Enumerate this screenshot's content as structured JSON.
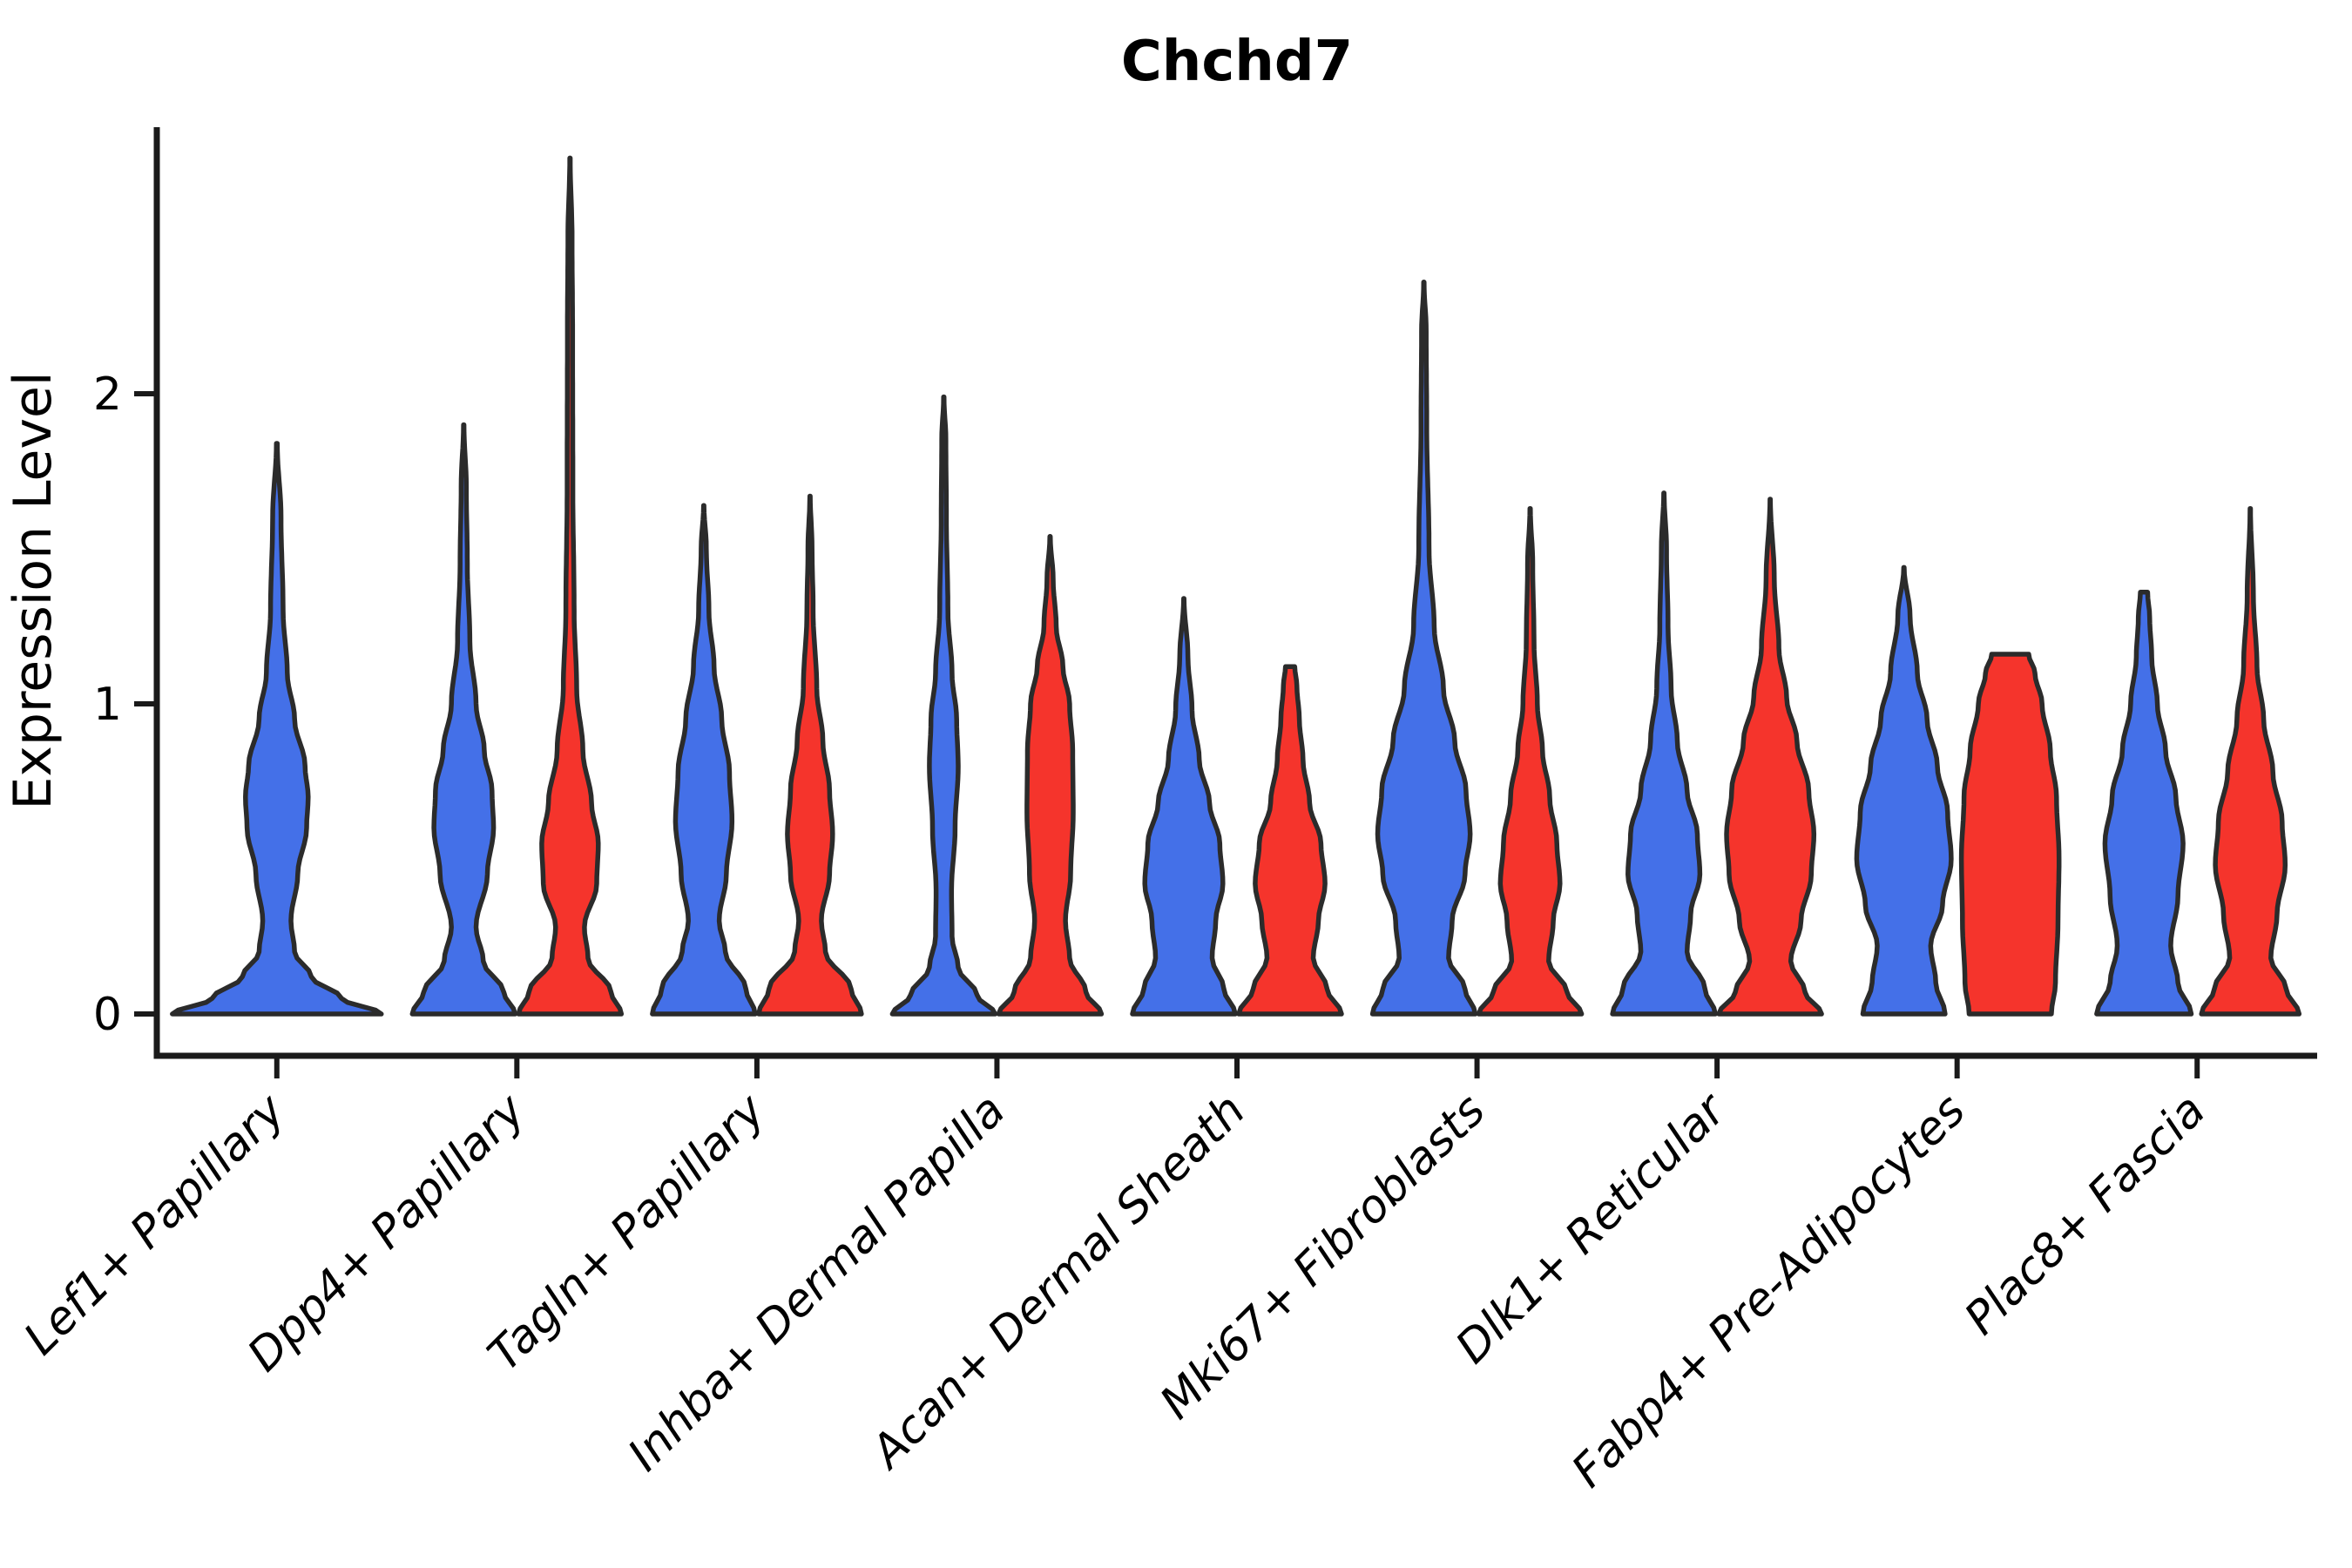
{
  "chart": {
    "title": "Chchd7",
    "ylabel": "Expression Level"
  },
  "chart_data": {
    "type": "violin",
    "title": "Chchd7",
    "xlabel": "",
    "ylabel": "Expression Level",
    "ylim": [
      0,
      2.87
    ],
    "yticks": [
      0,
      1,
      2
    ],
    "grid": false,
    "legend": "none",
    "categories": [
      "Lef1+ Papillary",
      "Dpp4+ Papillary",
      "Tagln+ Papillary",
      "Inhba+ Dermal Papilla",
      "Acan+ Dermal Sheath",
      "Mki67+ Fibroblasts",
      "Dlk1+ Reticular",
      "Fabp4+ Pre-Adipocytes",
      "Plac8+ Fascia"
    ],
    "colors": {
      "blue": "#4470E8",
      "red": "#F5342C",
      "outline": "#2B2B2B",
      "axis": "#1A1A1A"
    },
    "violins": [
      {
        "cat": 0,
        "color": "blue",
        "side": "center",
        "max_expression": 1.84,
        "profile": [
          [
            0,
            1.0
          ],
          [
            0.05,
            0.62
          ],
          [
            0.12,
            0.33
          ],
          [
            0.2,
            0.17
          ],
          [
            0.3,
            0.135
          ],
          [
            0.45,
            0.2
          ],
          [
            0.6,
            0.285
          ],
          [
            0.7,
            0.3
          ],
          [
            0.8,
            0.27
          ],
          [
            0.95,
            0.17
          ],
          [
            1.1,
            0.1
          ],
          [
            1.3,
            0.06
          ],
          [
            1.6,
            0.04
          ],
          [
            1.84,
            0.004
          ]
        ]
      },
      {
        "cat": 1,
        "color": "blue",
        "side": "left",
        "max_expression": 1.9,
        "profile": [
          [
            0,
            1.0
          ],
          [
            0.07,
            0.78
          ],
          [
            0.17,
            0.38
          ],
          [
            0.28,
            0.24
          ],
          [
            0.45,
            0.46
          ],
          [
            0.6,
            0.58
          ],
          [
            0.72,
            0.55
          ],
          [
            0.85,
            0.4
          ],
          [
            1.0,
            0.24
          ],
          [
            1.2,
            0.12
          ],
          [
            1.45,
            0.07
          ],
          [
            1.7,
            0.05
          ],
          [
            1.9,
            0.004
          ]
        ]
      },
      {
        "cat": 1,
        "color": "red",
        "side": "right",
        "max_expression": 2.76,
        "profile": [
          [
            0,
            1.0
          ],
          [
            0.07,
            0.8
          ],
          [
            0.18,
            0.35
          ],
          [
            0.28,
            0.28
          ],
          [
            0.42,
            0.52
          ],
          [
            0.55,
            0.55
          ],
          [
            0.68,
            0.42
          ],
          [
            0.85,
            0.25
          ],
          [
            1.05,
            0.13
          ],
          [
            1.3,
            0.08
          ],
          [
            1.7,
            0.055
          ],
          [
            2.2,
            0.05
          ],
          [
            2.5,
            0.04
          ],
          [
            2.76,
            0.004
          ]
        ]
      },
      {
        "cat": 2,
        "color": "blue",
        "side": "left",
        "max_expression": 1.64,
        "profile": [
          [
            0,
            1.0
          ],
          [
            0.08,
            0.82
          ],
          [
            0.2,
            0.42
          ],
          [
            0.3,
            0.3
          ],
          [
            0.45,
            0.44
          ],
          [
            0.62,
            0.55
          ],
          [
            0.78,
            0.5
          ],
          [
            0.95,
            0.35
          ],
          [
            1.12,
            0.2
          ],
          [
            1.3,
            0.1
          ],
          [
            1.5,
            0.05
          ],
          [
            1.64,
            0.004
          ]
        ]
      },
      {
        "cat": 2,
        "color": "red",
        "side": "right",
        "max_expression": 1.67,
        "profile": [
          [
            0,
            1.0
          ],
          [
            0.08,
            0.8
          ],
          [
            0.2,
            0.3
          ],
          [
            0.3,
            0.22
          ],
          [
            0.45,
            0.38
          ],
          [
            0.58,
            0.44
          ],
          [
            0.72,
            0.38
          ],
          [
            0.88,
            0.25
          ],
          [
            1.05,
            0.13
          ],
          [
            1.3,
            0.06
          ],
          [
            1.5,
            0.04
          ],
          [
            1.67,
            0.004
          ]
        ]
      },
      {
        "cat": 3,
        "color": "blue",
        "side": "left",
        "max_expression": 1.99,
        "profile": [
          [
            0,
            1.0
          ],
          [
            0.06,
            0.65
          ],
          [
            0.15,
            0.28
          ],
          [
            0.25,
            0.16
          ],
          [
            0.4,
            0.15
          ],
          [
            0.6,
            0.22
          ],
          [
            0.8,
            0.28
          ],
          [
            0.95,
            0.25
          ],
          [
            1.1,
            0.16
          ],
          [
            1.3,
            0.08
          ],
          [
            1.6,
            0.05
          ],
          [
            1.85,
            0.04
          ],
          [
            1.99,
            0.004
          ]
        ]
      },
      {
        "cat": 3,
        "color": "red",
        "side": "right",
        "max_expression": 1.54,
        "profile": [
          [
            0,
            1.0
          ],
          [
            0.07,
            0.7
          ],
          [
            0.18,
            0.38
          ],
          [
            0.3,
            0.3
          ],
          [
            0.45,
            0.4
          ],
          [
            0.65,
            0.45
          ],
          [
            0.85,
            0.44
          ],
          [
            1.0,
            0.38
          ],
          [
            1.12,
            0.25
          ],
          [
            1.25,
            0.12
          ],
          [
            1.4,
            0.06
          ],
          [
            1.54,
            0.004
          ]
        ]
      },
      {
        "cat": 4,
        "color": "blue",
        "side": "left",
        "max_expression": 1.34,
        "profile": [
          [
            0,
            1.0
          ],
          [
            0.08,
            0.78
          ],
          [
            0.18,
            0.55
          ],
          [
            0.3,
            0.62
          ],
          [
            0.42,
            0.76
          ],
          [
            0.55,
            0.7
          ],
          [
            0.68,
            0.5
          ],
          [
            0.82,
            0.3
          ],
          [
            0.98,
            0.16
          ],
          [
            1.15,
            0.08
          ],
          [
            1.34,
            0.004
          ]
        ]
      },
      {
        "cat": 4,
        "color": "red",
        "side": "right",
        "max_expression": 1.12,
        "profile": [
          [
            0,
            1.0
          ],
          [
            0.08,
            0.72
          ],
          [
            0.18,
            0.45
          ],
          [
            0.3,
            0.55
          ],
          [
            0.42,
            0.68
          ],
          [
            0.55,
            0.6
          ],
          [
            0.68,
            0.38
          ],
          [
            0.82,
            0.25
          ],
          [
            0.95,
            0.18
          ],
          [
            1.06,
            0.13
          ],
          [
            1.12,
            0.09
          ]
        ]
      },
      {
        "cat": 5,
        "color": "blue",
        "side": "left",
        "max_expression": 2.36,
        "profile": [
          [
            0,
            1.0
          ],
          [
            0.08,
            0.8
          ],
          [
            0.18,
            0.48
          ],
          [
            0.3,
            0.55
          ],
          [
            0.45,
            0.8
          ],
          [
            0.58,
            0.9
          ],
          [
            0.72,
            0.82
          ],
          [
            0.88,
            0.6
          ],
          [
            1.05,
            0.38
          ],
          [
            1.25,
            0.2
          ],
          [
            1.5,
            0.1
          ],
          [
            1.9,
            0.055
          ],
          [
            2.2,
            0.045
          ],
          [
            2.36,
            0.004
          ]
        ]
      },
      {
        "cat": 5,
        "color": "red",
        "side": "right",
        "max_expression": 1.63,
        "profile": [
          [
            0,
            1.0
          ],
          [
            0.07,
            0.72
          ],
          [
            0.17,
            0.36
          ],
          [
            0.3,
            0.45
          ],
          [
            0.42,
            0.58
          ],
          [
            0.55,
            0.52
          ],
          [
            0.7,
            0.38
          ],
          [
            0.85,
            0.24
          ],
          [
            1.0,
            0.14
          ],
          [
            1.2,
            0.075
          ],
          [
            1.45,
            0.05
          ],
          [
            1.63,
            0.004
          ]
        ]
      },
      {
        "cat": 6,
        "color": "blue",
        "side": "left",
        "max_expression": 1.68,
        "profile": [
          [
            0,
            1.0
          ],
          [
            0.08,
            0.8
          ],
          [
            0.2,
            0.45
          ],
          [
            0.32,
            0.52
          ],
          [
            0.45,
            0.7
          ],
          [
            0.58,
            0.65
          ],
          [
            0.72,
            0.45
          ],
          [
            0.88,
            0.26
          ],
          [
            1.05,
            0.14
          ],
          [
            1.25,
            0.08
          ],
          [
            1.5,
            0.05
          ],
          [
            1.68,
            0.004
          ]
        ]
      },
      {
        "cat": 6,
        "color": "red",
        "side": "right",
        "max_expression": 1.66,
        "profile": [
          [
            0,
            1.0
          ],
          [
            0.07,
            0.68
          ],
          [
            0.17,
            0.4
          ],
          [
            0.3,
            0.6
          ],
          [
            0.45,
            0.8
          ],
          [
            0.58,
            0.85
          ],
          [
            0.72,
            0.75
          ],
          [
            0.88,
            0.52
          ],
          [
            1.02,
            0.32
          ],
          [
            1.18,
            0.17
          ],
          [
            1.4,
            0.08
          ],
          [
            1.66,
            0.004
          ]
        ]
      },
      {
        "cat": 7,
        "color": "blue",
        "side": "left",
        "max_expression": 1.44,
        "profile": [
          [
            0,
            0.8
          ],
          [
            0.1,
            0.62
          ],
          [
            0.22,
            0.52
          ],
          [
            0.35,
            0.75
          ],
          [
            0.5,
            0.92
          ],
          [
            0.65,
            0.85
          ],
          [
            0.8,
            0.65
          ],
          [
            0.95,
            0.45
          ],
          [
            1.1,
            0.26
          ],
          [
            1.28,
            0.12
          ],
          [
            1.44,
            0.004
          ]
        ]
      },
      {
        "cat": 7,
        "color": "red",
        "side": "right",
        "max_expression": 1.16,
        "profile": [
          [
            0,
            0.8
          ],
          [
            0.1,
            0.88
          ],
          [
            0.3,
            0.93
          ],
          [
            0.5,
            0.95
          ],
          [
            0.7,
            0.9
          ],
          [
            0.85,
            0.78
          ],
          [
            1.0,
            0.62
          ],
          [
            1.1,
            0.48
          ],
          [
            1.16,
            0.36
          ]
        ]
      },
      {
        "cat": 8,
        "color": "blue",
        "side": "left",
        "max_expression": 1.36,
        "profile": [
          [
            0,
            0.92
          ],
          [
            0.1,
            0.66
          ],
          [
            0.22,
            0.52
          ],
          [
            0.38,
            0.66
          ],
          [
            0.55,
            0.76
          ],
          [
            0.7,
            0.62
          ],
          [
            0.85,
            0.42
          ],
          [
            1.0,
            0.26
          ],
          [
            1.15,
            0.15
          ],
          [
            1.28,
            0.11
          ],
          [
            1.36,
            0.07
          ]
        ]
      },
      {
        "cat": 8,
        "color": "red",
        "side": "right",
        "max_expression": 1.63,
        "profile": [
          [
            0,
            0.95
          ],
          [
            0.08,
            0.7
          ],
          [
            0.18,
            0.4
          ],
          [
            0.32,
            0.52
          ],
          [
            0.48,
            0.68
          ],
          [
            0.62,
            0.62
          ],
          [
            0.78,
            0.44
          ],
          [
            0.95,
            0.26
          ],
          [
            1.12,
            0.13
          ],
          [
            1.35,
            0.06
          ],
          [
            1.63,
            0.004
          ]
        ]
      }
    ]
  }
}
